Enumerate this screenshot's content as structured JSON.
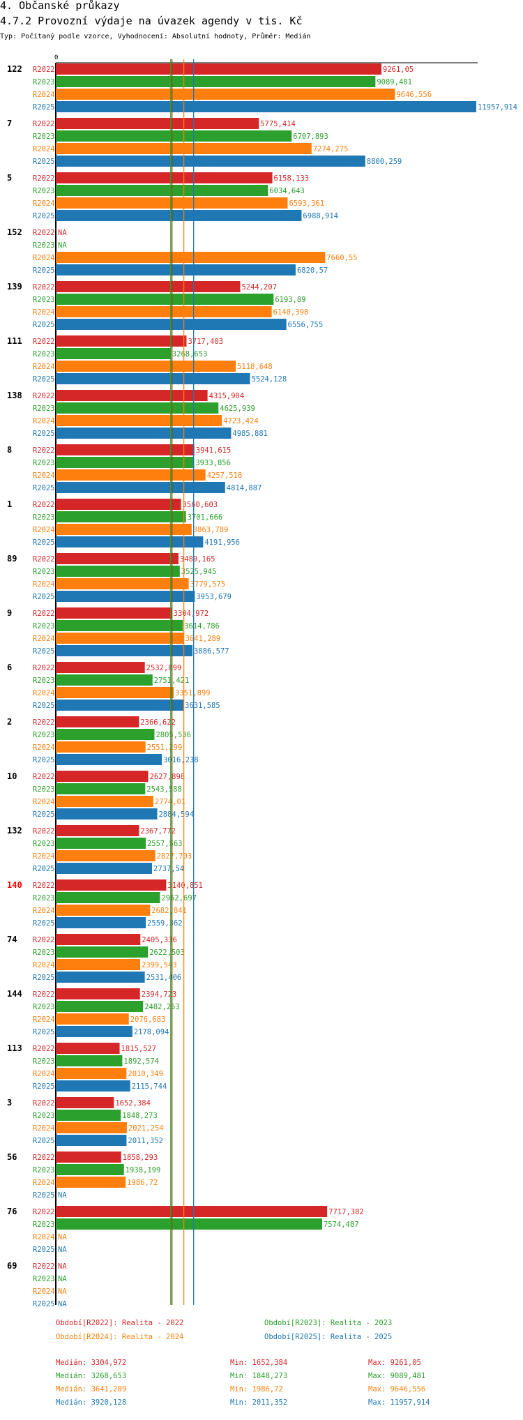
{
  "header": {
    "title": "4. Občanské průkazy",
    "subtitle": "4.7.2 Provozní výdaje na úvazek agendy v tis. Kč",
    "params": "Typ: Počítaný podle vzorce, Vyhodnocení: Absolutní hodnoty, Průměr: Medián"
  },
  "colors": {
    "R2022": "#d62728",
    "R2023": "#2ca02c",
    "R2024": "#ff7f0e",
    "R2025": "#1f77b4",
    "highlight": "#ff0000",
    "median_line_2022": "#8b4513"
  },
  "chart_data": {
    "type": "bar",
    "orientation": "horizontal",
    "title": "4.7.2 Provozní výdaje na úvazek agendy v tis. Kč",
    "axis_zero_label": "0",
    "xlim": [
      0,
      11957.914
    ],
    "series_names": [
      "R2022",
      "R2023",
      "R2024",
      "R2025"
    ],
    "highlighted_group": "140",
    "na_label": "NA",
    "groups": [
      {
        "label": "122",
        "values": [
          "9261,05",
          "9089,481",
          "9646,556",
          "11957,914"
        ]
      },
      {
        "label": "7",
        "values": [
          "5775,414",
          "6707,893",
          "7274,275",
          "8800,259"
        ]
      },
      {
        "label": "5",
        "values": [
          "6158,133",
          "6034,643",
          "6593,361",
          "6988,914"
        ]
      },
      {
        "label": "152",
        "values": [
          "NA",
          "NA",
          "7660,55",
          "6820,57"
        ]
      },
      {
        "label": "139",
        "values": [
          "5244,207",
          "6193,89",
          "6140,398",
          "6556,755"
        ]
      },
      {
        "label": "111",
        "values": [
          "3717,403",
          "3268,653",
          "5118,648",
          "5524,128"
        ]
      },
      {
        "label": "138",
        "values": [
          "4315,904",
          "4625,939",
          "4723,424",
          "4985,881"
        ]
      },
      {
        "label": "8",
        "values": [
          "3941,615",
          "3933,856",
          "4257,518",
          "4814,887"
        ]
      },
      {
        "label": "1",
        "values": [
          "3560,603",
          "3701,666",
          "3863,789",
          "4191,956"
        ]
      },
      {
        "label": "89",
        "values": [
          "3489,165",
          "3525,945",
          "3779,575",
          "3953,679"
        ]
      },
      {
        "label": "9",
        "values": [
          "3304,972",
          "3614,786",
          "3641,289",
          "3886,577"
        ]
      },
      {
        "label": "6",
        "values": [
          "2532,099",
          "2751,421",
          "3351,899",
          "3631,585"
        ]
      },
      {
        "label": "2",
        "values": [
          "2366,622",
          "2805,536",
          "2551,299",
          "3016,238"
        ]
      },
      {
        "label": "10",
        "values": [
          "2627,898",
          "2543,588",
          "2774,01",
          "2884,594"
        ]
      },
      {
        "label": "132",
        "values": [
          "2367,772",
          "2557,563",
          "2827,703",
          "2737,54"
        ]
      },
      {
        "label": "140",
        "values": [
          "3140,851",
          "2962,697",
          "2682,841",
          "2559,362"
        ]
      },
      {
        "label": "74",
        "values": [
          "2405,336",
          "2622,503",
          "2399,543",
          "2531,406"
        ]
      },
      {
        "label": "144",
        "values": [
          "2394,723",
          "2482,253",
          "2076,683",
          "2178,094"
        ]
      },
      {
        "label": "113",
        "values": [
          "1815,527",
          "1892,574",
          "2010,349",
          "2115,744"
        ]
      },
      {
        "label": "3",
        "values": [
          "1652,384",
          "1848,273",
          "2021,254",
          "2011,352"
        ]
      },
      {
        "label": "56",
        "values": [
          "1858,293",
          "1938,199",
          "1986,72",
          "NA"
        ]
      },
      {
        "label": "76",
        "values": [
          "7717,382",
          "7574,487",
          "NA",
          "NA"
        ]
      },
      {
        "label": "69",
        "values": [
          "NA",
          "NA",
          "NA",
          "NA"
        ]
      }
    ],
    "median_lines": [
      3304.972,
      3268.653,
      3641.289,
      3920.128
    ]
  },
  "legend": {
    "items": [
      "Období[R2022]: Realita - 2022",
      "Období[R2023]: Realita - 2023",
      "Období[R2024]: Realita - 2024",
      "Období[R2025]: Realita - 2025"
    ]
  },
  "stats": {
    "rows": [
      {
        "median": "Medián: 3304,972",
        "min": "Min: 1652,384",
        "max": "Max: 9261,05"
      },
      {
        "median": "Medián: 3268,653",
        "min": "Min: 1848,273",
        "max": "Max: 9089,481"
      },
      {
        "median": "Medián: 3641,289",
        "min": "Min: 1986,72",
        "max": "Max: 9646,556"
      },
      {
        "median": "Medián: 3920,128",
        "min": "Min: 2011,352",
        "max": "Max: 11957,914"
      }
    ]
  }
}
